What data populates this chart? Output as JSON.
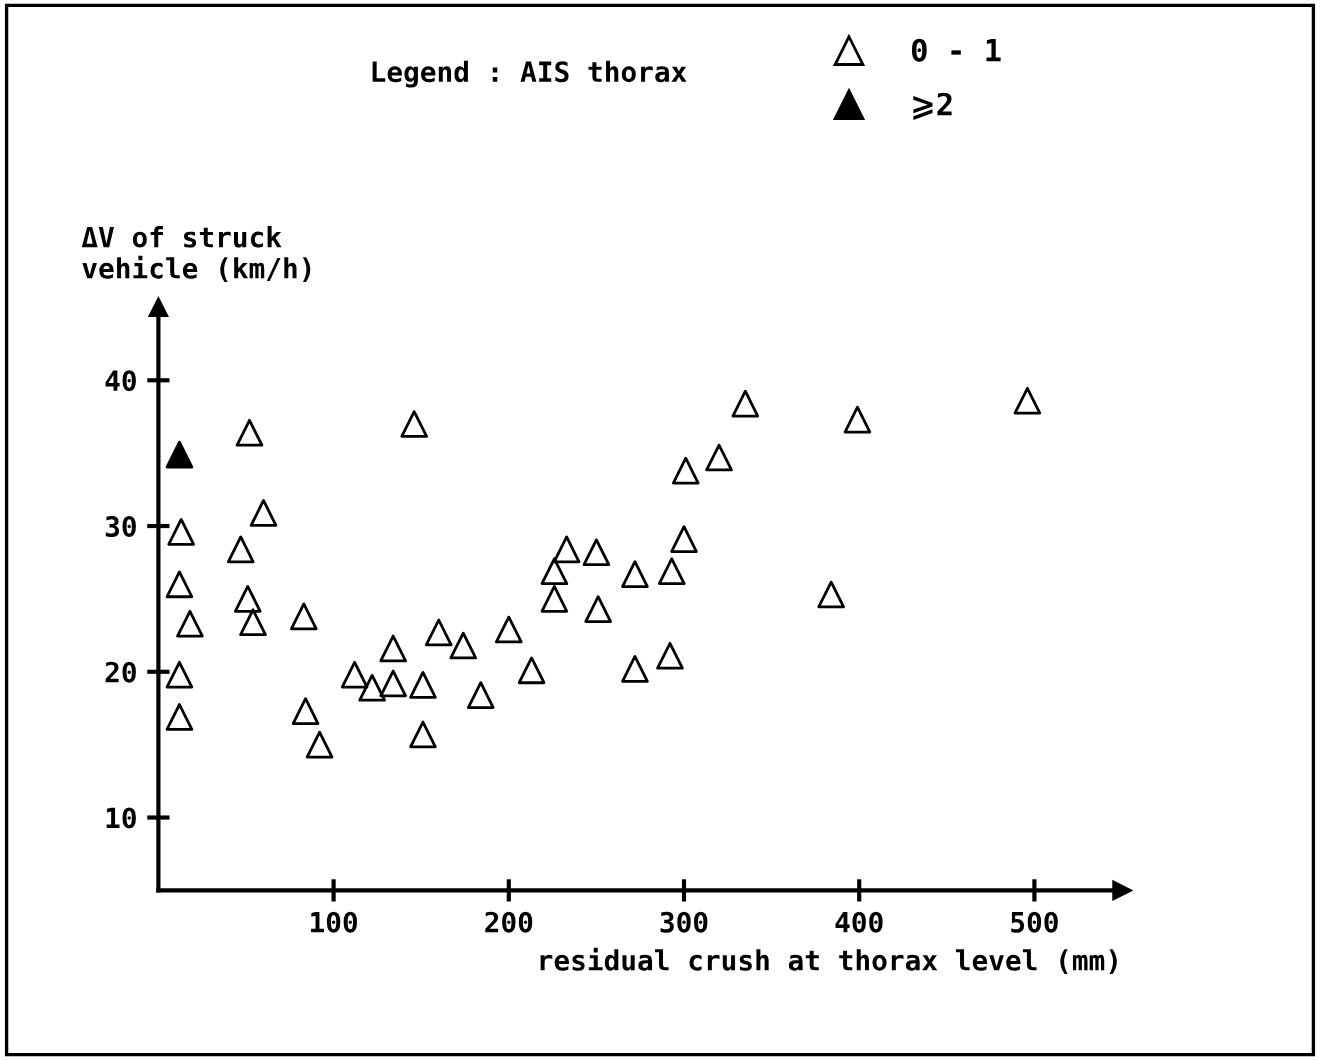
{
  "chart_data": {
    "type": "scatter",
    "xlabel": "residual crush at thorax level (mm)",
    "ylabel": "ΔV of struck\nvehicle (km/h)",
    "legend_title": "Legend : AIS thorax",
    "legend": "top right",
    "marker": "triangle",
    "grid": false,
    "xlim": [
      0,
      550
    ],
    "ylim": [
      5,
      45
    ],
    "xticks": [
      100,
      200,
      300,
      400,
      500
    ],
    "yticks": [
      10,
      20,
      30,
      40
    ],
    "series": [
      {
        "name": "0 - 1",
        "color": "#000000",
        "x": [
          13,
          12,
          18,
          12,
          12,
          52,
          60,
          47,
          51,
          54,
          83,
          84,
          92,
          146,
          112,
          122,
          134,
          134,
          151,
          151,
          160,
          174,
          184,
          200,
          213,
          226,
          226,
          233,
          250,
          251,
          272,
          272,
          293,
          292,
          300,
          301,
          320,
          335,
          384,
          399,
          496
        ],
        "values": [
          29.6,
          26.0,
          23.3,
          19.8,
          16.9,
          36.4,
          30.9,
          28.4,
          25.0,
          23.4,
          23.8,
          17.3,
          15.0,
          37.0,
          19.8,
          18.9,
          19.2,
          21.6,
          19.1,
          15.7,
          22.7,
          21.8,
          18.4,
          22.9,
          20.1,
          26.9,
          25.0,
          28.4,
          28.2,
          24.3,
          26.7,
          20.2,
          26.9,
          21.1,
          29.1,
          33.8,
          34.7,
          38.4,
          25.3,
          37.3,
          38.6
        ]
      },
      {
        "name": "⩾2",
        "color": "#000000",
        "x": [
          12
        ],
        "values": [
          34.9
        ]
      }
    ]
  }
}
